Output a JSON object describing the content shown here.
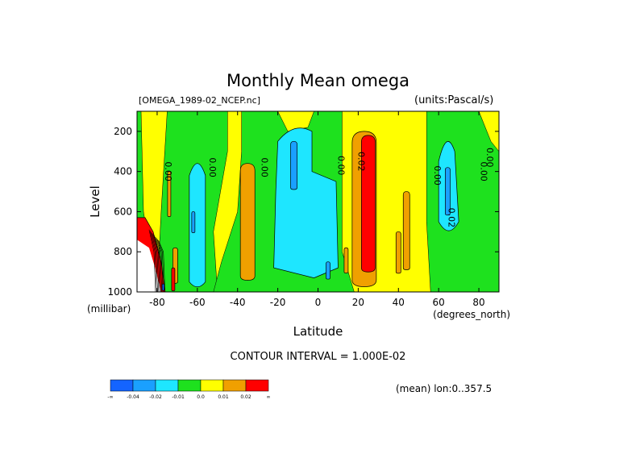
{
  "header": {
    "title": "Monthly Mean omega",
    "file": "[OMEGA_1989-02_NCEP.nc]",
    "units": "(units:Pascal/s)"
  },
  "footer": {
    "contour_interval": "CONTOUR INTERVAL = 1.000E-02",
    "mean_note": "(mean) lon:0..357.5"
  },
  "colors": {
    "blue": "#1464ff",
    "medblue": "#1aa0ff",
    "cyan": "#1ee6ff",
    "green": "#1ee11e",
    "yellow": "#ffff00",
    "orange": "#f0a000",
    "red": "#ff0000"
  },
  "chart_data": {
    "type": "contour",
    "title": "Monthly Mean omega",
    "xlabel": "Latitude",
    "xunits": "(degrees_north)",
    "ylabel": "Level",
    "yunits": "(millibar)",
    "xlim": [
      -90,
      90
    ],
    "ylim": [
      1000,
      100
    ],
    "y_inverted": true,
    "grid": false,
    "x_ticks": [
      -80,
      -60,
      -40,
      -20,
      0,
      20,
      40,
      60,
      80
    ],
    "y_ticks": [
      1000,
      800,
      600,
      400,
      200
    ],
    "contour_interval": 0.01,
    "contour_labels": [
      {
        "text": "0.00",
        "lat": -76,
        "level": 400
      },
      {
        "text": "0.00",
        "lat": -54,
        "level": 380
      },
      {
        "text": "0.00",
        "lat": -28,
        "level": 380
      },
      {
        "text": "0.00",
        "lat": 10,
        "level": 370
      },
      {
        "text": "0.02",
        "lat": 20,
        "level": 350
      },
      {
        "text": "0.00",
        "lat": 58,
        "level": 420
      },
      {
        "text": "0.02",
        "lat": 65,
        "level": 630
      },
      {
        "text": "0.00",
        "lat": 81,
        "level": 400
      },
      {
        "text": "0.00",
        "lat": 84,
        "level": 330
      }
    ],
    "colorbar": {
      "labels": [
        "-∞",
        "-0.04",
        "-0.02",
        "-0.01",
        "0.0",
        "0.01",
        "0.02",
        "∞"
      ],
      "colors": [
        "#1464ff",
        "#1aa0ff",
        "#1ee6ff",
        "#1ee11e",
        "#ffff00",
        "#f0a000",
        "#ff0000"
      ]
    }
  }
}
